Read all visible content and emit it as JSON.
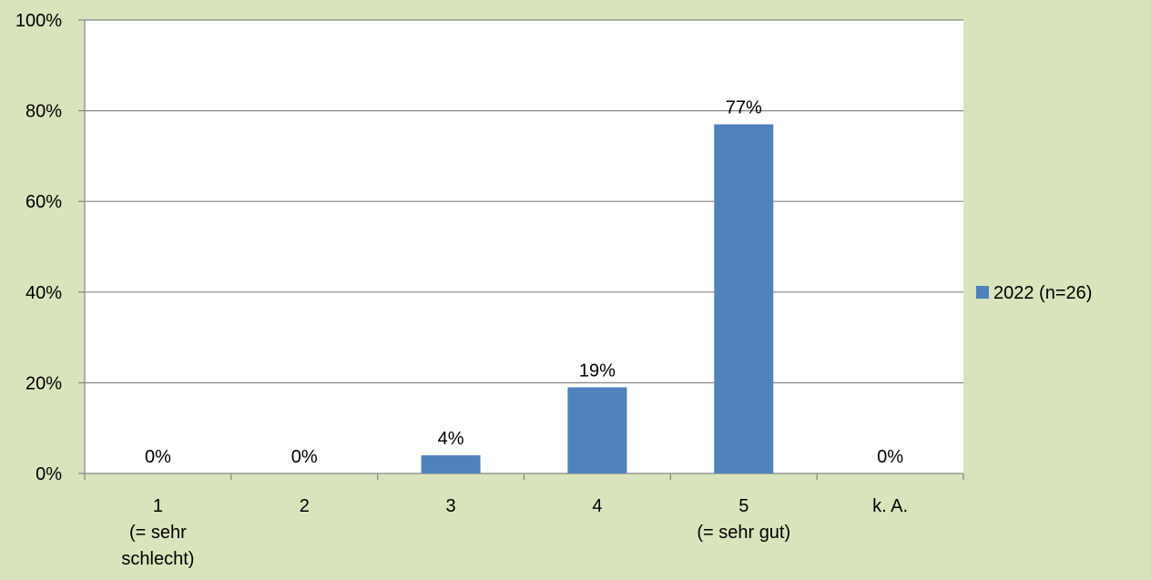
{
  "chart_data": {
    "type": "bar",
    "categories": [
      [
        "1",
        "(= sehr",
        "schlecht)"
      ],
      [
        "2"
      ],
      [
        "3"
      ],
      [
        "4"
      ],
      [
        "5",
        "(= sehr gut)"
      ],
      [
        "k. A."
      ]
    ],
    "series": [
      {
        "name": "2022 (n=26)",
        "values": [
          0,
          0,
          4,
          19,
          77,
          0
        ],
        "data_labels": [
          "0%",
          "0%",
          "4%",
          "19%",
          "77%",
          "0%"
        ],
        "color": "#4f81bd"
      }
    ],
    "y_ticks": [
      "0%",
      "20%",
      "40%",
      "60%",
      "80%",
      "100%"
    ],
    "ylim": [
      0,
      100
    ],
    "grid": true,
    "legend_position": "right",
    "colors": {
      "background": "#d8e4bc",
      "plot_area": "#ffffff",
      "gridline": "#868686",
      "axis": "#868686"
    }
  }
}
